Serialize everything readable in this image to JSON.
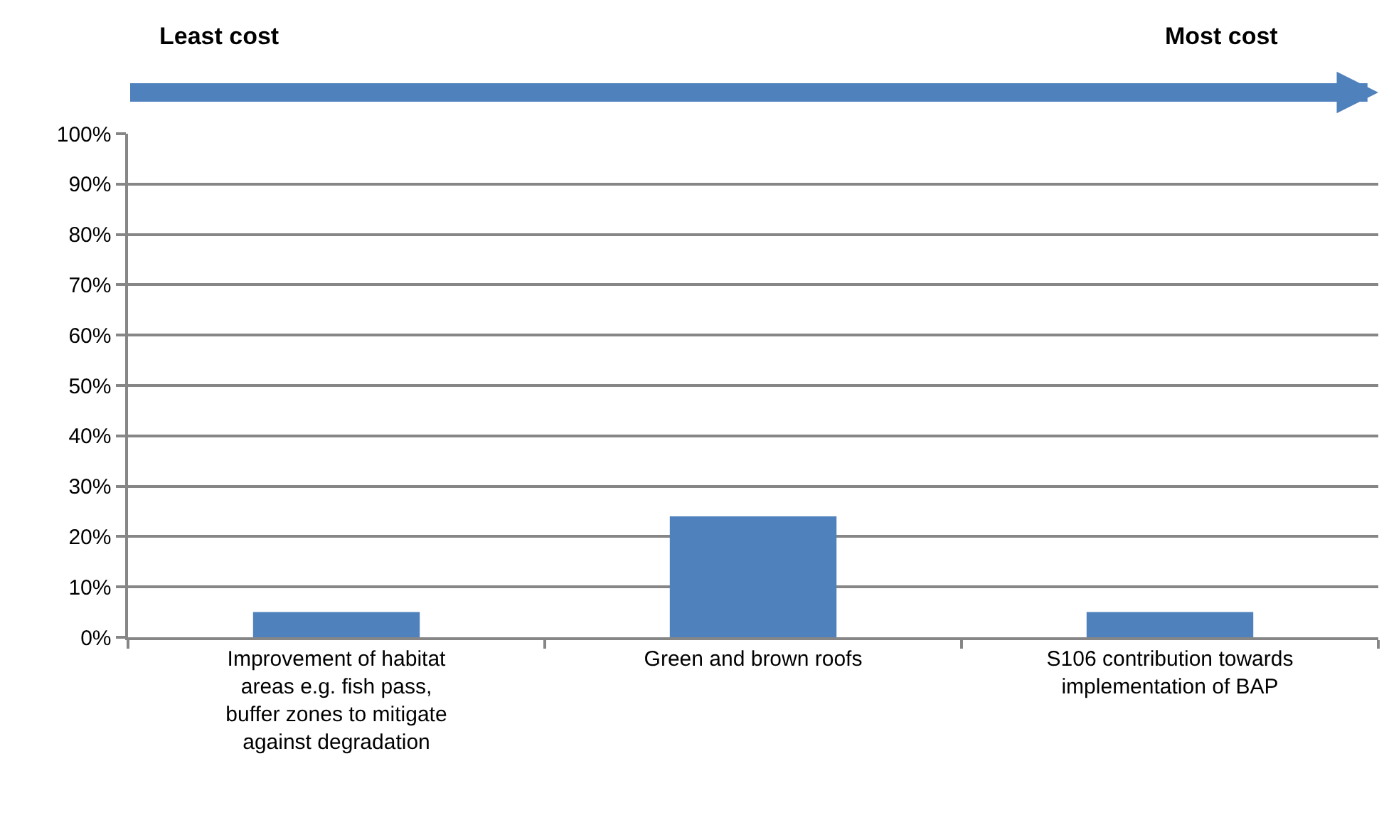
{
  "chart_data": {
    "type": "bar",
    "categories": [
      "Improvement of habitat areas e.g. fish pass, buffer zones to mitigate against degradation",
      "Green and brown roofs",
      "S106 contribution towards implementation of BAP"
    ],
    "values": [
      5,
      24,
      5
    ],
    "color": "#4f81bd",
    "ylim": [
      0,
      100
    ],
    "yticks": [
      {
        "value": 0,
        "label": "0%"
      },
      {
        "value": 10,
        "label": "10%"
      },
      {
        "value": 20,
        "label": "20%"
      },
      {
        "value": 30,
        "label": "30%"
      },
      {
        "value": 40,
        "label": "40%"
      },
      {
        "value": 50,
        "label": "50%"
      },
      {
        "value": 60,
        "label": "60%"
      },
      {
        "value": 70,
        "label": "70%"
      },
      {
        "value": 80,
        "label": "80%"
      },
      {
        "value": 90,
        "label": "90%"
      },
      {
        "value": 100,
        "label": "100%"
      }
    ],
    "grid": "y",
    "annotations": [
      "Least cost",
      "Most cost"
    ]
  }
}
